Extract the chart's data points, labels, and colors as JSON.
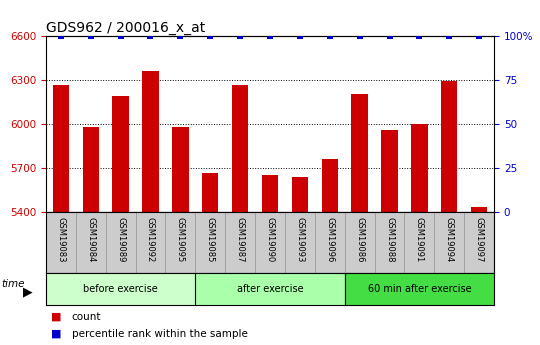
{
  "title": "GDS962 / 200016_x_at",
  "categories": [
    "GSM19083",
    "GSM19084",
    "GSM19089",
    "GSM19092",
    "GSM19095",
    "GSM19085",
    "GSM19087",
    "GSM19090",
    "GSM19093",
    "GSM19096",
    "GSM19086",
    "GSM19088",
    "GSM19091",
    "GSM19094",
    "GSM19097"
  ],
  "values": [
    6265,
    5980,
    6195,
    6360,
    5980,
    5665,
    6270,
    5655,
    5640,
    5760,
    6205,
    5960,
    6000,
    6295,
    5435
  ],
  "percentile_values": [
    100,
    100,
    100,
    100,
    100,
    100,
    100,
    100,
    100,
    100,
    100,
    100,
    100,
    100,
    100
  ],
  "bar_color": "#cc0000",
  "percentile_color": "#0000cc",
  "ylim_left": [
    5400,
    6600
  ],
  "ylim_right": [
    0,
    100
  ],
  "yticks_left": [
    5400,
    5700,
    6000,
    6300,
    6600
  ],
  "yticks_right": [
    0,
    25,
    50,
    75,
    100
  ],
  "groups": [
    {
      "label": "before exercise",
      "start": 0,
      "end": 5,
      "color": "#ccffcc"
    },
    {
      "label": "after exercise",
      "start": 5,
      "end": 10,
      "color": "#aaffaa"
    },
    {
      "label": "60 min after exercise",
      "start": 10,
      "end": 15,
      "color": "#44dd44"
    }
  ],
  "legend_count_label": "count",
  "legend_percentile_label": "percentile rank within the sample",
  "time_label": "time",
  "tick_label_color_left": "#cc0000",
  "tick_label_color_right": "#0000cc",
  "title_fontsize": 10,
  "bar_width": 0.55,
  "label_bg_color": "#cccccc",
  "label_line_color": "#999999"
}
